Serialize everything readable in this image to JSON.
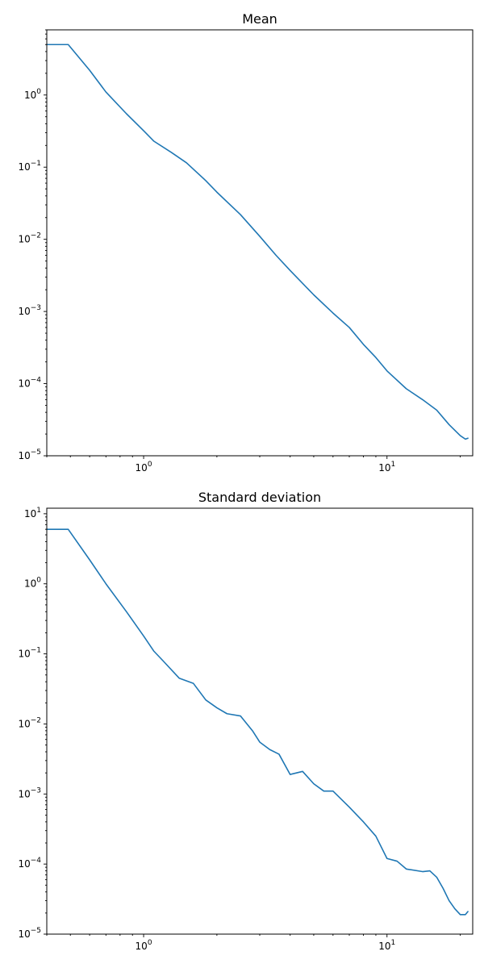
{
  "chart_data": [
    {
      "type": "line",
      "title": "Mean",
      "xscale": "log",
      "yscale": "log",
      "xlim": [
        0.4,
        22.5
      ],
      "ylim": [
        1e-05,
        8
      ],
      "grid": false,
      "legend": "none",
      "x_ticks": [
        {
          "value": 1,
          "base": "10",
          "exp": "0"
        },
        {
          "value": 10,
          "base": "10",
          "exp": "1"
        }
      ],
      "y_ticks": [
        {
          "value": 1e-05,
          "base": "10",
          "exp": "−5"
        },
        {
          "value": 0.0001,
          "base": "10",
          "exp": "−4"
        },
        {
          "value": 0.001,
          "base": "10",
          "exp": "−3"
        },
        {
          "value": 0.01,
          "base": "10",
          "exp": "−2"
        },
        {
          "value": 0.1,
          "base": "10",
          "exp": "−1"
        },
        {
          "value": 1,
          "base": "10",
          "exp": "0"
        }
      ],
      "series": [
        {
          "color": "#1f77b4",
          "x": [
            0.4,
            0.49,
            0.6,
            0.7,
            0.85,
            1.0,
            1.1,
            1.3,
            1.5,
            1.8,
            2.0,
            2.5,
            3.0,
            3.5,
            4.0,
            5.0,
            6.0,
            7.0,
            8.0,
            9.0,
            10.0,
            12.0,
            14.0,
            16.0,
            18.0,
            20.0,
            21.0,
            21.5
          ],
          "y": [
            5.0,
            5.0,
            2.2,
            1.1,
            0.55,
            0.32,
            0.23,
            0.16,
            0.115,
            0.065,
            0.045,
            0.022,
            0.011,
            0.006,
            0.0037,
            0.0017,
            0.00095,
            0.0006,
            0.00035,
            0.00023,
            0.00015,
            8.5e-05,
            6e-05,
            4.3e-05,
            2.7e-05,
            1.9e-05,
            1.7e-05,
            1.75e-05
          ]
        }
      ]
    },
    {
      "type": "line",
      "title": "Standard deviation",
      "xscale": "log",
      "yscale": "log",
      "xlim": [
        0.4,
        22.5
      ],
      "ylim": [
        1e-05,
        12
      ],
      "grid": false,
      "legend": "none",
      "x_ticks": [
        {
          "value": 1,
          "base": "10",
          "exp": "0"
        },
        {
          "value": 10,
          "base": "10",
          "exp": "1"
        }
      ],
      "y_ticks": [
        {
          "value": 1e-05,
          "base": "10",
          "exp": "−5"
        },
        {
          "value": 0.0001,
          "base": "10",
          "exp": "−4"
        },
        {
          "value": 0.001,
          "base": "10",
          "exp": "−3"
        },
        {
          "value": 0.01,
          "base": "10",
          "exp": "−2"
        },
        {
          "value": 0.1,
          "base": "10",
          "exp": "−1"
        },
        {
          "value": 1,
          "base": "10",
          "exp": "0"
        },
        {
          "value": 10,
          "base": "10",
          "exp": "1"
        }
      ],
      "series": [
        {
          "color": "#1f77b4",
          "x": [
            0.4,
            0.49,
            0.6,
            0.7,
            0.85,
            1.0,
            1.1,
            1.2,
            1.4,
            1.6,
            1.8,
            2.0,
            2.2,
            2.5,
            2.8,
            3.0,
            3.3,
            3.6,
            4.0,
            4.5,
            5.0,
            5.5,
            6.0,
            7.0,
            8.0,
            9.0,
            10.0,
            11.0,
            12.0,
            14.0,
            15.0,
            16.0,
            17.0,
            18.0,
            19.0,
            20.0,
            21.0,
            21.5
          ],
          "y": [
            6.0,
            6.0,
            2.2,
            1.0,
            0.4,
            0.18,
            0.11,
            0.08,
            0.045,
            0.038,
            0.022,
            0.017,
            0.014,
            0.013,
            0.008,
            0.0055,
            0.0043,
            0.0037,
            0.0019,
            0.0021,
            0.0014,
            0.0011,
            0.0011,
            0.00065,
            0.0004,
            0.00025,
            0.00012,
            0.00011,
            8.5e-05,
            7.8e-05,
            8e-05,
            6.5e-05,
            4.5e-05,
            3e-05,
            2.3e-05,
            1.9e-05,
            1.9e-05,
            2.1e-05
          ]
        }
      ]
    }
  ]
}
